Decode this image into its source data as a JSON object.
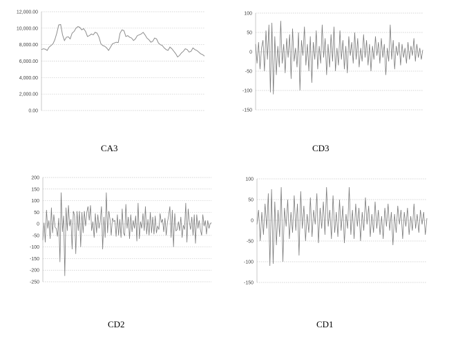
{
  "chart_data": [
    {
      "type": "line",
      "caption": "CA3",
      "ylim": [
        0,
        12000
      ],
      "yticks": [
        "0.00",
        "2,000.00",
        "4,000.00",
        "6,000.00",
        "8,000.00",
        "10,000.00",
        "12,000.00"
      ],
      "grid": true,
      "line_color": "#8c8c8c",
      "values": [
        7400,
        7500,
        7450,
        7300,
        7700,
        7900,
        8100,
        8600,
        9400,
        10400,
        10450,
        9200,
        8500,
        8900,
        8950,
        8700,
        9400,
        9600,
        10000,
        10200,
        10100,
        9800,
        9950,
        9600,
        9000,
        9100,
        9300,
        9200,
        9500,
        9400,
        8900,
        8100,
        7900,
        7800,
        7600,
        7300,
        7700,
        8100,
        8200,
        8300,
        8250,
        9400,
        9800,
        9700,
        9000,
        9100,
        8900,
        8800,
        8500,
        8700,
        9100,
        9200,
        9300,
        9500,
        9200,
        8800,
        8600,
        8300,
        8400,
        8800,
        8700,
        8200,
        8000,
        7900,
        7600,
        7400,
        7300,
        7700,
        7500,
        7200,
        6900,
        6500,
        6700,
        7000,
        7200,
        7500,
        7400,
        7100,
        7200,
        7600,
        7400,
        7300,
        7100,
        6900,
        6800,
        6600
      ]
    },
    {
      "type": "line",
      "caption": "CD3",
      "ylim": [
        -150,
        100
      ],
      "yticks": [
        "-150",
        "-100",
        "-50",
        "0",
        "50",
        "100"
      ],
      "grid": true,
      "line_color": "#7a7a7a",
      "values": [
        20,
        -30,
        25,
        -45,
        10,
        30,
        -50,
        55,
        -20,
        70,
        -105,
        75,
        -110,
        40,
        -60,
        15,
        -40,
        80,
        -30,
        20,
        -55,
        35,
        -15,
        45,
        -70,
        60,
        -25,
        10,
        -40,
        50,
        -100,
        30,
        -10,
        65,
        -35,
        20,
        -50,
        40,
        -80,
        25,
        -20,
        55,
        -45,
        15,
        -30,
        70,
        -15,
        35,
        -60,
        20,
        -40,
        45,
        -25,
        65,
        -50,
        10,
        -35,
        55,
        -20,
        30,
        -45,
        15,
        -55,
        40,
        -10,
        25,
        -30,
        50,
        -20,
        35,
        -40,
        10,
        -25,
        45,
        -15,
        30,
        -35,
        20,
        -50,
        15,
        -20,
        40,
        -10,
        25,
        -30,
        35,
        -15,
        20,
        -60,
        10,
        -25,
        70,
        -20,
        30,
        -45,
        15,
        -10,
        25,
        -35,
        20,
        -15,
        10,
        -30,
        25,
        -20,
        15,
        -10,
        35,
        -25,
        20,
        -15,
        10,
        -20,
        5
      ]
    },
    {
      "type": "line",
      "caption": "CD2",
      "ylim": [
        -250,
        200
      ],
      "yticks": [
        "-250",
        "-200",
        "-150",
        "-100",
        "-50",
        "0",
        "50",
        "100",
        "150",
        "200"
      ],
      "grid": true,
      "line_color": "#7a7a7a",
      "values": [
        -70,
        5,
        -80,
        60,
        -20,
        15,
        -65,
        70,
        -40,
        40,
        -15,
        -20,
        -55,
        25,
        -165,
        135,
        -35,
        35,
        -225,
        70,
        -30,
        80,
        -10,
        20,
        -110,
        55,
        35,
        -130,
        55,
        -30,
        55,
        -100,
        50,
        -40,
        55,
        -10,
        50,
        75,
        15,
        80,
        -30,
        10,
        -60,
        45,
        -40,
        40,
        -20,
        10,
        75,
        -110,
        30,
        -60,
        135,
        -40,
        55,
        20,
        -50,
        25,
        10,
        15,
        -55,
        40,
        -50,
        20,
        -60,
        65,
        -40,
        -50,
        85,
        -20,
        30,
        -65,
        40,
        -35,
        15,
        -20,
        35,
        -75,
        90,
        -65,
        10,
        -20,
        45,
        -30,
        75,
        -45,
        20,
        -50,
        50,
        -40,
        30,
        -45,
        35,
        -40,
        -10,
        -25,
        45,
        5,
        20,
        -35,
        25,
        -50,
        5,
        35,
        75,
        -60,
        60,
        -100,
        45,
        -30,
        -25,
        10,
        -30,
        30,
        -60,
        -5,
        -25,
        90,
        -80,
        65,
        5,
        -25,
        30,
        -50,
        40,
        -85,
        40,
        -20,
        15,
        -25,
        -50,
        40,
        -10,
        15,
        -45,
        15,
        -20,
        0,
        5
      ]
    },
    {
      "type": "line",
      "caption": "CD1",
      "ylim": [
        -150,
        100
      ],
      "yticks": [
        "-150",
        "-100",
        "-50",
        "0",
        "50",
        "100"
      ],
      "grid": true,
      "line_color": "#7a7a7a",
      "values": [
        -10,
        25,
        -50,
        20,
        -35,
        40,
        -20,
        65,
        -110,
        75,
        -105,
        45,
        -60,
        25,
        -40,
        80,
        -100,
        30,
        -15,
        50,
        -45,
        20,
        -30,
        60,
        -25,
        40,
        -85,
        70,
        -20,
        35,
        -50,
        15,
        -30,
        55,
        -40,
        25,
        -10,
        65,
        -55,
        30,
        -20,
        45,
        -35,
        80,
        -15,
        25,
        -45,
        60,
        -30,
        20,
        -40,
        50,
        -25,
        35,
        -55,
        15,
        -20,
        80,
        -35,
        25,
        -45,
        40,
        -15,
        30,
        -50,
        20,
        -25,
        55,
        -10,
        35,
        -40,
        15,
        -30,
        45,
        -20,
        25,
        -35,
        10,
        -45,
        30,
        -15,
        40,
        -25,
        20,
        -60,
        15,
        -30,
        35,
        -10,
        25,
        -45,
        20,
        -15,
        30,
        -35,
        10,
        -25,
        40,
        -20,
        15,
        -30,
        25,
        -10,
        20,
        -35,
        5
      ]
    }
  ]
}
